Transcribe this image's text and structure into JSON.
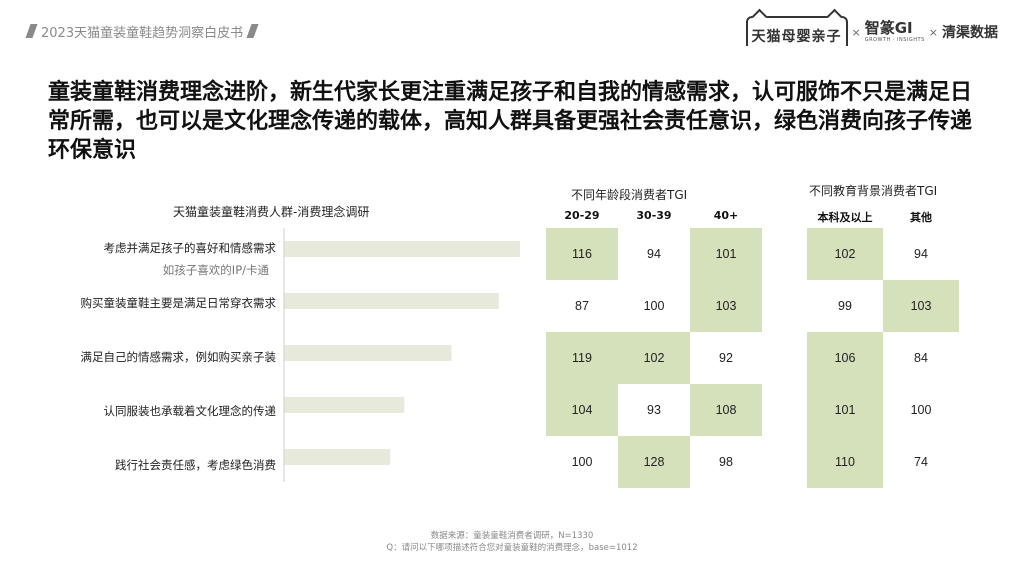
{
  "header": {
    "report_title": "2023天猫童装童鞋趋势洞察白皮书",
    "logos": {
      "tmall": "天猫母婴亲子",
      "sep1": "×",
      "gi": "智篆GI",
      "gi_sub": "GROWTH · INSIGHTS",
      "sep2": "×",
      "qingqu": "清渠数据"
    }
  },
  "headline": "童装童鞋消费理念进阶，新生代家长更注重满足孩子和自我的情感需求，认可服饰不只是满足日常所需，也可以是文化理念传递的载体，高知人群具备更强社会责任意识，绿色消费向孩子传递环保意识",
  "colors": {
    "bar": "#e7e9da",
    "highlight": "#d5e1bb",
    "axis": "#cfcfcf"
  },
  "chart_data": [
    {
      "type": "bar",
      "orientation": "horizontal",
      "title": "天猫童装童鞋消费人群-消费理念调研",
      "categories": [
        "考虑并满足孩子的喜好和情感需求",
        "购买童装童鞋主要是满足日常穿衣需求",
        "满足自己的情感需求，例如购买亲子装",
        "认同服装也承载着文化理念的传递",
        "践行社会责任感，考虑绿色消费"
      ],
      "category_notes": [
        "如孩子喜欢的IP/卡通",
        "",
        "",
        "",
        ""
      ],
      "values": [
        100,
        91,
        71,
        51,
        45
      ]
    },
    {
      "type": "table",
      "title": "不同年龄段消费者TGI",
      "columns": [
        "20-29",
        "30-39",
        "40+"
      ],
      "rows": [
        [
          116,
          94,
          101
        ],
        [
          87,
          100,
          103
        ],
        [
          119,
          102,
          92
        ],
        [
          104,
          93,
          108
        ],
        [
          100,
          128,
          98
        ]
      ],
      "highlight": [
        [
          true,
          false,
          true
        ],
        [
          false,
          false,
          true
        ],
        [
          true,
          true,
          false
        ],
        [
          true,
          false,
          true
        ],
        [
          false,
          true,
          false
        ]
      ]
    },
    {
      "type": "table",
      "title": "不同教育背景消费者TGI",
      "columns": [
        "本科及以上",
        "其他"
      ],
      "rows": [
        [
          102,
          94
        ],
        [
          99,
          103
        ],
        [
          106,
          84
        ],
        [
          101,
          100
        ],
        [
          110,
          74
        ]
      ],
      "highlight": [
        [
          true,
          false
        ],
        [
          false,
          true
        ],
        [
          true,
          false
        ],
        [
          true,
          false
        ],
        [
          true,
          false
        ]
      ]
    }
  ],
  "footer": {
    "source": "数据来源：童装童鞋消费者调研，N=1330",
    "question": "Q：请问以下哪项描述符合您对童装童鞋的消费理念，base=1012"
  }
}
